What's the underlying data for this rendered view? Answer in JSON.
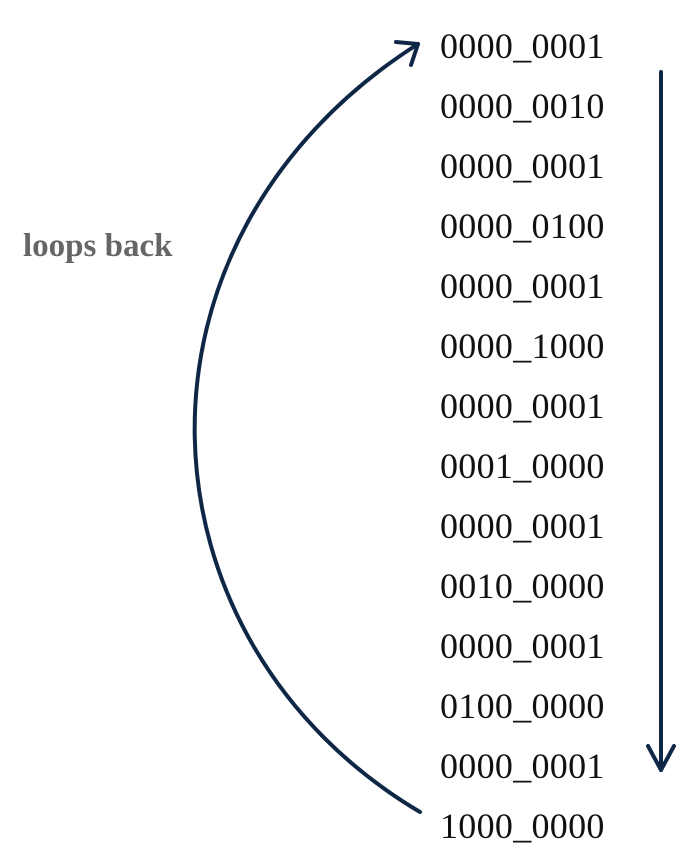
{
  "annotation": {
    "loop_label": "loops back"
  },
  "sequence": [
    "0000_0001",
    "0000_0010",
    "0000_0001",
    "0000_0100",
    "0000_0001",
    "0000_1000",
    "0000_0001",
    "0001_0000",
    "0000_0001",
    "0010_0000",
    "0000_0001",
    "0100_0000",
    "0000_0001",
    "1000_0000"
  ],
  "colors": {
    "arrow": "#0f2746",
    "label": "#666666",
    "text": "#111111",
    "background": "#ffffff"
  },
  "icons": {
    "loop_arrow": "curved-arrow-icon",
    "down_arrow": "down-arrow-icon"
  }
}
